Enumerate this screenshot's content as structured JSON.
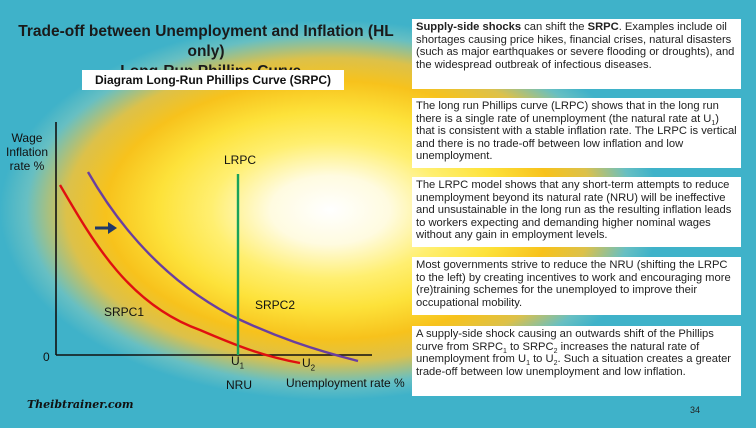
{
  "slide": {
    "title_line1": "Trade-off between Unemployment and Inflation (HL only)",
    "title_line2": "- Long-Run Phillips Curve",
    "diagram_label": "Diagram Long-Run Phillips Curve (SRPC)",
    "logo": "Theibtrainer.com",
    "page_number": "34"
  },
  "diagram": {
    "y_axis_label": "Wage Inflation rate %",
    "x_axis_label": "Unemployment rate %",
    "origin_label": "0",
    "lrpc_label": "LRPC",
    "srpc1_label": "SRPC1",
    "srpc2_label": "SRPC2",
    "u1_main": "U",
    "u1_sub": "1",
    "u2_main": "U",
    "u2_sub": "2",
    "nru_label": "NRU",
    "colors": {
      "srpc1": "#e01010",
      "srpc2": "#6a3fa0",
      "lrpc": "#19a35a",
      "arrow": "#1f3868",
      "axes": "#111111"
    }
  },
  "text_boxes": {
    "box1": {
      "bold1": "Supply-side shocks",
      "text1": " can shift the ",
      "bold2": "SRPC",
      "text2": ". Examples include oil shortages causing price hikes, financial crises, natural disasters (such as major earthquakes or severe flooding or droughts), and the widespread outbreak of infectious diseases."
    },
    "box2": {
      "text1": "The long run Phillips curve (LRPC) shows that in the long run there is a single rate of unemployment (the natural rate at U",
      "sub1": "1",
      "text2": ") that is consistent with a stable inflation rate. The LRPC is vertical and there is no trade-off between low inflation and low unemployment."
    },
    "box3": {
      "text": "The LRPC model shows that any short-term attempts to reduce unemployment beyond its natural rate (NRU) will be ineffective and unsustainable in the long run as the resulting inflation leads to workers expecting and demanding higher nominal wages without any gain in employment levels."
    },
    "box4": {
      "text": "Most governments strive to reduce the NRU (shifting the LRPC to the left) by creating incentives to work and encouraging more (re)training schemes for the unemployed to improve their occupational mobility."
    },
    "box5": {
      "text1": "A supply-side shock causing an outwards shift of the Phillips curve from SRPC",
      "sub1": "1",
      "text2": " to SRPC",
      "sub2": "2",
      "text3": " increases the natural rate of unemployment from U",
      "sub3": "1",
      "text4": " to U",
      "sub4": "2",
      "text5": ". Such a situation creates a greater trade-off between low unemployment and low inflation."
    }
  }
}
